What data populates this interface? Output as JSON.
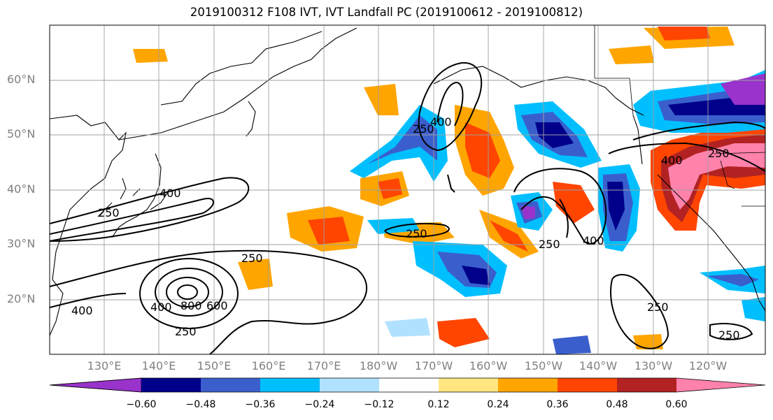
{
  "title": "2019100312 F108 IVT, IVT Landfall PC (2019100612 - 2019100812)",
  "map": {
    "lat_labels": [
      "60°N",
      "50°N",
      "40°N",
      "30°N",
      "20°N"
    ],
    "lon_labels": [
      "130°E",
      "140°E",
      "150°E",
      "160°E",
      "170°E",
      "180°W",
      "170°W",
      "160°W",
      "150°W",
      "140°W",
      "130°W",
      "120°W"
    ],
    "contour_labels": [
      "250",
      "400",
      "800",
      "600",
      "250",
      "400",
      "250",
      "250",
      "400",
      "250",
      "400",
      "250",
      "400",
      "250",
      "250",
      "400",
      "250"
    ]
  },
  "colorbar": {
    "ticks": [
      "−0.60",
      "−0.48",
      "−0.36",
      "−0.24",
      "−0.12",
      "0.12",
      "0.24",
      "0.36",
      "0.48",
      "0.60"
    ],
    "colors": [
      "#9933cc",
      "#00008b",
      "#3a5fcd",
      "#00bfff",
      "#b0e2ff",
      "#ffffff",
      "#ffe680",
      "#ffa500",
      "#ff4500",
      "#b22222",
      "#ff82ab"
    ]
  }
}
